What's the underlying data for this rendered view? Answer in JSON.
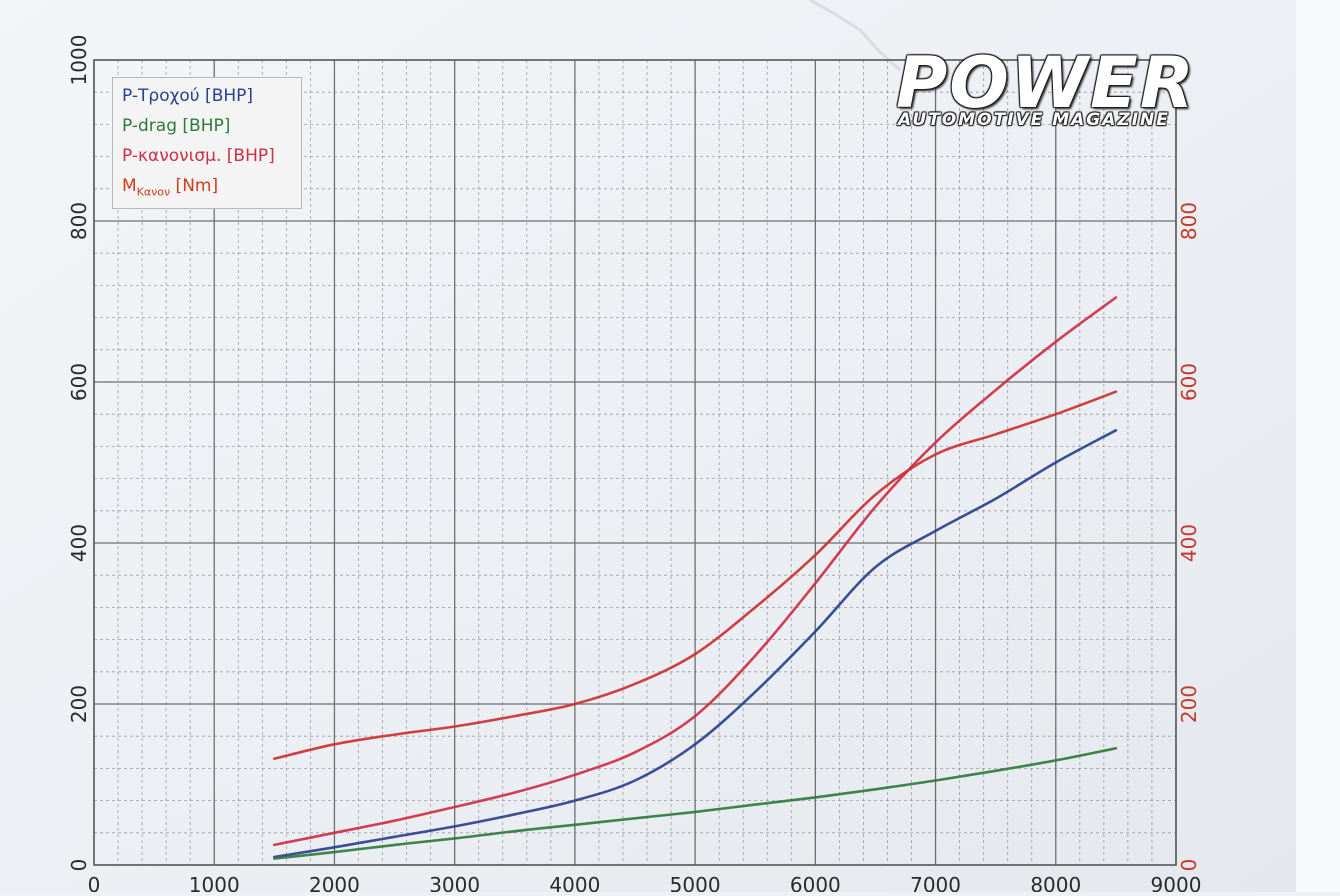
{
  "chart_data": {
    "type": "line",
    "xlabel": "",
    "ylabel": "",
    "xlim": [
      0,
      9000
    ],
    "ylim": [
      0,
      1000
    ],
    "y2lim": [
      0,
      1000
    ],
    "x_ticks": [
      0,
      1000,
      2000,
      3000,
      4000,
      5000,
      6000,
      7000,
      8000,
      9000
    ],
    "y_ticks": [
      0,
      200,
      400,
      600,
      800,
      1000
    ],
    "y2_ticks": [
      0,
      200,
      400,
      600,
      800
    ],
    "grid": true,
    "legend_position": "top-left",
    "legend": [
      {
        "prefix": "P-Τροχού",
        "sub": "",
        "suffix": " [BHP]",
        "color": "#2a3f8f"
      },
      {
        "prefix": "P-drag",
        "sub": "",
        "suffix": " [BHP]",
        "color": "#2f7a3a"
      },
      {
        "prefix": "P-κανονισμ.",
        "sub": "",
        "suffix": " [BHP]",
        "color": "#cc2f45"
      },
      {
        "prefix": "M",
        "sub": "Κανον",
        "suffix": " [Nm]",
        "color": "#d2391e"
      }
    ],
    "colors": {
      "blue": "#2a3f8f",
      "green": "#2f7a3a",
      "red": "#cc2f45",
      "torque": "#cc3030",
      "grid": "#8a8a8a",
      "axis_right": "#c43a2a"
    },
    "series": [
      {
        "name": "P-Τροχού [BHP]",
        "axis": "left",
        "color": "#2a3f8f",
        "x": [
          1500,
          2000,
          2500,
          3000,
          3500,
          4000,
          4500,
          5000,
          5500,
          6000,
          6500,
          7000,
          7500,
          8000,
          8500
        ],
        "y": [
          10,
          22,
          35,
          48,
          63,
          80,
          105,
          150,
          215,
          290,
          370,
          415,
          455,
          500,
          540
        ]
      },
      {
        "name": "P-drag [BHP]",
        "axis": "left",
        "color": "#2f7a3a",
        "x": [
          1500,
          2000,
          2500,
          3000,
          3500,
          4000,
          4500,
          5000,
          5500,
          6000,
          6500,
          7000,
          7500,
          8000,
          8500
        ],
        "y": [
          8,
          16,
          25,
          33,
          42,
          50,
          58,
          66,
          75,
          84,
          94,
          105,
          117,
          130,
          145
        ]
      },
      {
        "name": "P-κανονισμ. [BHP]",
        "axis": "left",
        "color": "#cc2f45",
        "x": [
          1500,
          2000,
          2500,
          3000,
          3500,
          4000,
          4500,
          5000,
          5500,
          6000,
          6500,
          7000,
          7500,
          8000,
          8500
        ],
        "y": [
          25,
          40,
          55,
          72,
          90,
          112,
          140,
          185,
          260,
          350,
          445,
          525,
          590,
          650,
          705
        ]
      },
      {
        "name": "Mκανον [Nm]",
        "axis": "right",
        "color": "#cc3030",
        "x": [
          1500,
          2000,
          2500,
          3000,
          3500,
          4000,
          4500,
          5000,
          5500,
          6000,
          6500,
          7000,
          7500,
          8000,
          8500
        ],
        "y": [
          132,
          150,
          162,
          172,
          185,
          200,
          225,
          262,
          320,
          385,
          460,
          510,
          535,
          560,
          588
        ]
      }
    ]
  },
  "branding": {
    "title": "POWER",
    "subtitle": "AUTOMOTIVE MAGAZINE"
  }
}
